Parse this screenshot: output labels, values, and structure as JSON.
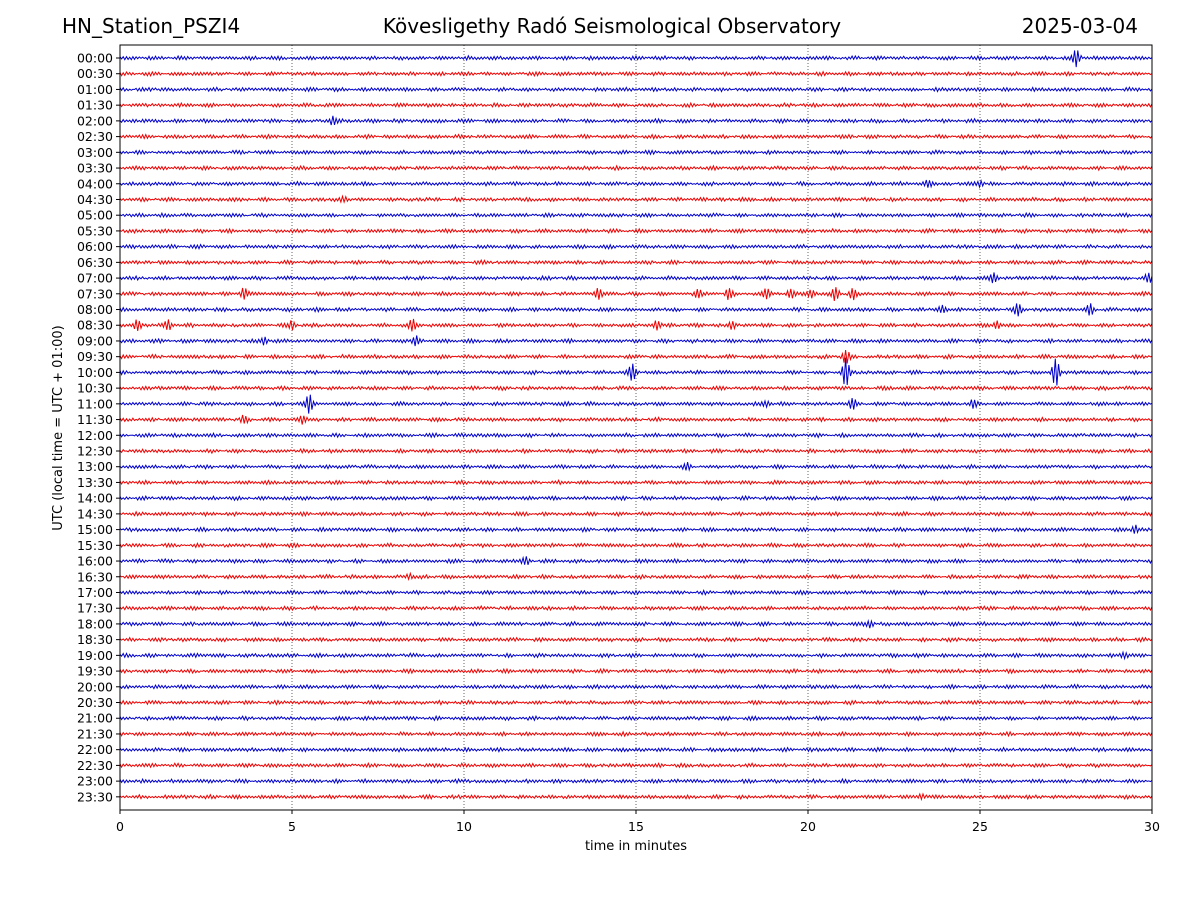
{
  "header": {
    "station": "HN_Station_PSZI4",
    "observatory": "Kövesligethy Radó Seismological Observatory",
    "date": "2025-03-04"
  },
  "chart_data": {
    "type": "line",
    "title": "Kövesligethy Radó Seismological Observatory",
    "xlabel": "time in minutes",
    "ylabel": "UTC (local time = UTC + 01:00)",
    "xlim": [
      0,
      30
    ],
    "x_ticks": [
      0,
      5,
      10,
      15,
      20,
      25,
      30
    ],
    "x_tick_labels": [
      "0",
      "5",
      "10",
      "15",
      "20",
      "25",
      "30"
    ],
    "grid": "vertical dotted at each x tick",
    "colors": [
      "#0000cc",
      "#ee0000"
    ],
    "traces": [
      {
        "label": "00:00",
        "color": "#0000cc",
        "events": [
          {
            "t": 27.8,
            "amp": 1.2
          }
        ]
      },
      {
        "label": "00:30",
        "color": "#ee0000",
        "events": []
      },
      {
        "label": "01:00",
        "color": "#0000cc",
        "events": []
      },
      {
        "label": "01:30",
        "color": "#ee0000",
        "events": []
      },
      {
        "label": "02:00",
        "color": "#0000cc",
        "events": [
          {
            "t": 6.2,
            "amp": 0.6
          }
        ]
      },
      {
        "label": "02:30",
        "color": "#ee0000",
        "events": []
      },
      {
        "label": "03:00",
        "color": "#0000cc",
        "events": []
      },
      {
        "label": "03:30",
        "color": "#ee0000",
        "events": []
      },
      {
        "label": "04:00",
        "color": "#0000cc",
        "events": [
          {
            "t": 23.5,
            "amp": 0.5
          },
          {
            "t": 25.0,
            "amp": 0.5
          }
        ]
      },
      {
        "label": "04:30",
        "color": "#ee0000",
        "events": [
          {
            "t": 6.5,
            "amp": 0.4
          }
        ]
      },
      {
        "label": "05:00",
        "color": "#0000cc",
        "events": []
      },
      {
        "label": "05:30",
        "color": "#ee0000",
        "events": []
      },
      {
        "label": "06:00",
        "color": "#0000cc",
        "events": []
      },
      {
        "label": "06:30",
        "color": "#ee0000",
        "events": []
      },
      {
        "label": "07:00",
        "color": "#0000cc",
        "events": [
          {
            "t": 25.4,
            "amp": 0.7
          },
          {
            "t": 29.9,
            "amp": 0.6
          }
        ]
      },
      {
        "label": "07:30",
        "color": "#ee0000",
        "events": [
          {
            "t": 3.6,
            "amp": 0.9
          },
          {
            "t": 13.9,
            "amp": 0.9
          },
          {
            "t": 16.8,
            "amp": 0.6
          },
          {
            "t": 17.7,
            "amp": 0.8
          },
          {
            "t": 18.8,
            "amp": 0.8
          },
          {
            "t": 19.5,
            "amp": 0.7
          },
          {
            "t": 20.1,
            "amp": 0.7
          },
          {
            "t": 20.8,
            "amp": 1.0
          },
          {
            "t": 21.3,
            "amp": 0.8
          }
        ]
      },
      {
        "label": "08:00",
        "color": "#0000cc",
        "events": [
          {
            "t": 23.9,
            "amp": 0.5
          },
          {
            "t": 26.1,
            "amp": 0.9
          },
          {
            "t": 28.2,
            "amp": 0.9
          }
        ]
      },
      {
        "label": "08:30",
        "color": "#ee0000",
        "events": [
          {
            "t": 0.5,
            "amp": 0.8
          },
          {
            "t": 1.4,
            "amp": 0.7
          },
          {
            "t": 5.0,
            "amp": 0.6
          },
          {
            "t": 8.5,
            "amp": 0.9
          },
          {
            "t": 15.6,
            "amp": 0.7
          },
          {
            "t": 17.8,
            "amp": 0.6
          },
          {
            "t": 25.5,
            "amp": 0.6
          }
        ]
      },
      {
        "label": "09:00",
        "color": "#0000cc",
        "events": [
          {
            "t": 4.2,
            "amp": 0.6
          },
          {
            "t": 8.6,
            "amp": 0.7
          }
        ]
      },
      {
        "label": "09:30",
        "color": "#ee0000",
        "events": [
          {
            "t": 21.1,
            "amp": 1.0
          }
        ]
      },
      {
        "label": "10:00",
        "color": "#0000cc",
        "events": [
          {
            "t": 14.9,
            "amp": 1.3
          },
          {
            "t": 21.1,
            "amp": 2.2
          },
          {
            "t": 27.2,
            "amp": 2.2
          }
        ]
      },
      {
        "label": "10:30",
        "color": "#ee0000",
        "events": []
      },
      {
        "label": "11:00",
        "color": "#0000cc",
        "events": [
          {
            "t": 5.5,
            "amp": 1.5
          },
          {
            "t": 18.8,
            "amp": 0.5
          },
          {
            "t": 21.3,
            "amp": 0.8
          },
          {
            "t": 24.8,
            "amp": 0.5
          }
        ]
      },
      {
        "label": "11:30",
        "color": "#ee0000",
        "events": [
          {
            "t": 3.6,
            "amp": 0.5
          },
          {
            "t": 5.3,
            "amp": 0.6
          }
        ]
      },
      {
        "label": "12:00",
        "color": "#0000cc",
        "events": []
      },
      {
        "label": "12:30",
        "color": "#ee0000",
        "events": []
      },
      {
        "label": "13:00",
        "color": "#0000cc",
        "events": [
          {
            "t": 16.5,
            "amp": 0.5
          }
        ]
      },
      {
        "label": "13:30",
        "color": "#ee0000",
        "events": []
      },
      {
        "label": "14:00",
        "color": "#0000cc",
        "events": []
      },
      {
        "label": "14:30",
        "color": "#ee0000",
        "events": []
      },
      {
        "label": "15:00",
        "color": "#0000cc",
        "events": [
          {
            "t": 29.5,
            "amp": 0.6
          }
        ]
      },
      {
        "label": "15:30",
        "color": "#ee0000",
        "events": []
      },
      {
        "label": "16:00",
        "color": "#0000cc",
        "events": [
          {
            "t": 11.8,
            "amp": 0.5
          }
        ]
      },
      {
        "label": "16:30",
        "color": "#ee0000",
        "events": [
          {
            "t": 8.4,
            "amp": 0.4
          }
        ]
      },
      {
        "label": "17:00",
        "color": "#0000cc",
        "events": []
      },
      {
        "label": "17:30",
        "color": "#ee0000",
        "events": []
      },
      {
        "label": "18:00",
        "color": "#0000cc",
        "events": [
          {
            "t": 21.8,
            "amp": 0.5
          }
        ]
      },
      {
        "label": "18:30",
        "color": "#ee0000",
        "events": []
      },
      {
        "label": "19:00",
        "color": "#0000cc",
        "events": [
          {
            "t": 29.2,
            "amp": 0.5
          }
        ]
      },
      {
        "label": "19:30",
        "color": "#ee0000",
        "events": []
      },
      {
        "label": "20:00",
        "color": "#0000cc",
        "events": []
      },
      {
        "label": "20:30",
        "color": "#ee0000",
        "events": []
      },
      {
        "label": "21:00",
        "color": "#0000cc",
        "events": []
      },
      {
        "label": "21:30",
        "color": "#ee0000",
        "events": []
      },
      {
        "label": "22:00",
        "color": "#0000cc",
        "events": []
      },
      {
        "label": "22:30",
        "color": "#ee0000",
        "events": []
      },
      {
        "label": "23:00",
        "color": "#0000cc",
        "events": []
      },
      {
        "label": "23:30",
        "color": "#ee0000",
        "events": [
          {
            "t": 23.3,
            "amp": 0.4
          }
        ]
      }
    ]
  }
}
